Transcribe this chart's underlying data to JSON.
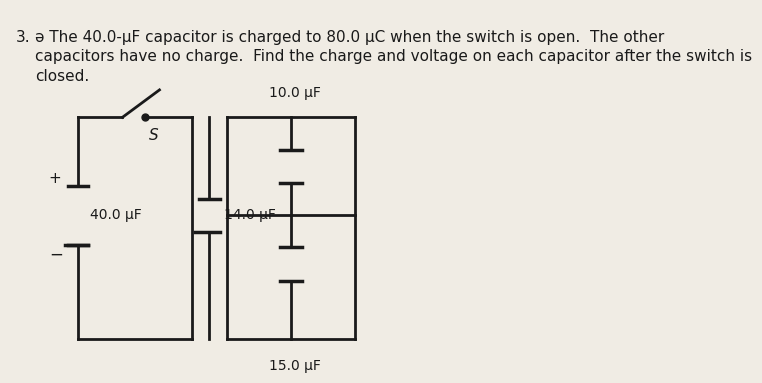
{
  "title_number": "3.",
  "title_text": "ə The 40.0-μF capacitor is charged to 80.0 μC when the switch is open.  The other\ncapacitors have no charge.  Find the charge and voltage on each capacitor after the switch is\nclosed.",
  "bg_color": "#f0ece4",
  "text_color": "#1a1a1a",
  "font_size_title": 11,
  "cap_40_label": "40.0 μF",
  "cap_10_label": "10.0 μF",
  "cap_14_label": "14.0 μF",
  "cap_15_label": "15.0 μF",
  "switch_label": "S"
}
